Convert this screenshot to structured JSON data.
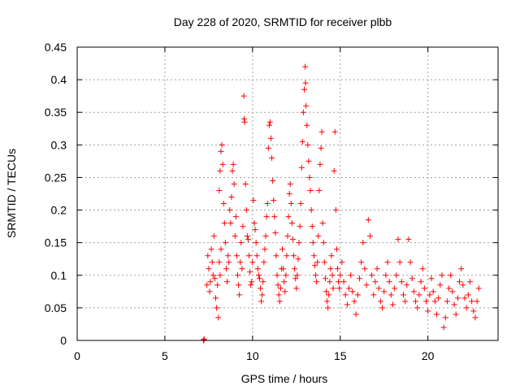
{
  "chart_data": {
    "type": "scatter",
    "title": "Day 228 of 2020, SRMTID for receiver plbb",
    "xlabel": "GPS time / hours",
    "ylabel": "SRMTID / TECUs",
    "xlim": [
      0,
      24
    ],
    "ylim": [
      0,
      0.45
    ],
    "xticks": [
      0,
      5,
      10,
      15,
      20
    ],
    "xtick_labels": [
      "0",
      "5",
      "10",
      "15",
      "20"
    ],
    "yticks": [
      0,
      0.05,
      0.1,
      0.15,
      0.2,
      0.25,
      0.3,
      0.35,
      0.4,
      0.45
    ],
    "ytick_labels": [
      "0",
      "0.05",
      "0.1",
      "0.15",
      "0.2",
      "0.25",
      "0.3",
      "0.35",
      "0.4",
      "0.45"
    ],
    "grid": true,
    "marker": "+",
    "color": "#ff0000",
    "series": [
      {
        "name": "SRMTID",
        "points": [
          [
            7.2,
            0.0
          ],
          [
            7.22,
            0.001
          ],
          [
            7.24,
            0.002
          ],
          [
            7.4,
            0.085
          ],
          [
            7.45,
            0.13
          ],
          [
            7.5,
            0.11
          ],
          [
            7.55,
            0.075
          ],
          [
            7.6,
            0.09
          ],
          [
            7.65,
            0.14
          ],
          [
            7.7,
            0.12
          ],
          [
            7.75,
            0.1
          ],
          [
            7.8,
            0.16
          ],
          [
            7.85,
            0.095
          ],
          [
            7.9,
            0.065
          ],
          [
            7.95,
            0.05
          ],
          [
            8.0,
            0.085
          ],
          [
            8.05,
            0.035
          ],
          [
            8.1,
            0.12
          ],
          [
            8.15,
            0.1
          ],
          [
            8.2,
            0.14
          ],
          [
            8.1,
            0.23
          ],
          [
            8.15,
            0.26
          ],
          [
            8.2,
            0.29
          ],
          [
            8.25,
            0.3
          ],
          [
            8.3,
            0.27
          ],
          [
            8.35,
            0.21
          ],
          [
            8.4,
            0.18
          ],
          [
            8.45,
            0.15
          ],
          [
            8.5,
            0.11
          ],
          [
            8.55,
            0.09
          ],
          [
            8.6,
            0.13
          ],
          [
            8.65,
            0.12
          ],
          [
            8.7,
            0.2
          ],
          [
            8.75,
            0.18
          ],
          [
            8.8,
            0.22
          ],
          [
            8.85,
            0.26
          ],
          [
            8.9,
            0.27
          ],
          [
            8.95,
            0.24
          ],
          [
            9.0,
            0.16
          ],
          [
            9.05,
            0.19
          ],
          [
            9.1,
            0.13
          ],
          [
            9.15,
            0.1
          ],
          [
            9.2,
            0.085
          ],
          [
            9.25,
            0.07
          ],
          [
            9.3,
            0.12
          ],
          [
            9.35,
            0.15
          ],
          [
            9.4,
            0.11
          ],
          [
            9.45,
            0.175
          ],
          [
            9.5,
            0.375
          ],
          [
            9.52,
            0.34
          ],
          [
            9.55,
            0.335
          ],
          [
            9.6,
            0.24
          ],
          [
            9.65,
            0.2
          ],
          [
            9.7,
            0.16
          ],
          [
            9.75,
            0.155
          ],
          [
            9.8,
            0.13
          ],
          [
            9.85,
            0.105
          ],
          [
            9.9,
            0.085
          ],
          [
            9.95,
            0.09
          ],
          [
            10.0,
            0.12
          ],
          [
            10.05,
            0.215
          ],
          [
            10.1,
            0.18
          ],
          [
            10.15,
            0.17
          ],
          [
            10.2,
            0.15
          ],
          [
            10.25,
            0.13
          ],
          [
            10.3,
            0.11
          ],
          [
            10.35,
            0.1
          ],
          [
            10.4,
            0.095
          ],
          [
            10.45,
            0.08
          ],
          [
            10.5,
            0.06
          ],
          [
            10.55,
            0.07
          ],
          [
            10.6,
            0.09
          ],
          [
            10.65,
            0.12
          ],
          [
            10.7,
            0.14
          ],
          [
            10.75,
            0.16
          ],
          [
            10.8,
            0.19
          ],
          [
            10.85,
            0.21
          ],
          [
            10.9,
            0.295
          ],
          [
            10.95,
            0.33
          ],
          [
            11.0,
            0.335
          ],
          [
            11.05,
            0.31
          ],
          [
            11.1,
            0.28
          ],
          [
            11.15,
            0.245
          ],
          [
            11.2,
            0.215
          ],
          [
            11.25,
            0.19
          ],
          [
            11.3,
            0.165
          ],
          [
            11.35,
            0.13
          ],
          [
            11.4,
            0.1
          ],
          [
            11.45,
            0.085
          ],
          [
            11.5,
            0.07
          ],
          [
            11.55,
            0.06
          ],
          [
            11.6,
            0.08
          ],
          [
            11.65,
            0.11
          ],
          [
            11.7,
            0.14
          ],
          [
            11.75,
            0.11
          ],
          [
            11.8,
            0.09
          ],
          [
            11.85,
            0.075
          ],
          [
            11.9,
            0.1
          ],
          [
            11.95,
            0.13
          ],
          [
            12.0,
            0.16
          ],
          [
            12.05,
            0.19
          ],
          [
            12.1,
            0.225
          ],
          [
            12.15,
            0.24
          ],
          [
            12.2,
            0.21
          ],
          [
            12.25,
            0.18
          ],
          [
            12.3,
            0.155
          ],
          [
            12.35,
            0.13
          ],
          [
            12.4,
            0.11
          ],
          [
            12.45,
            0.095
          ],
          [
            12.5,
            0.08
          ],
          [
            12.55,
            0.1
          ],
          [
            12.6,
            0.125
          ],
          [
            12.65,
            0.15
          ],
          [
            12.7,
            0.175
          ],
          [
            12.75,
            0.21
          ],
          [
            12.8,
            0.265
          ],
          [
            12.85,
            0.305
          ],
          [
            12.9,
            0.35
          ],
          [
            12.95,
            0.385
          ],
          [
            13.0,
            0.42
          ],
          [
            13.02,
            0.395
          ],
          [
            13.05,
            0.36
          ],
          [
            13.1,
            0.33
          ],
          [
            13.15,
            0.3
          ],
          [
            13.2,
            0.275
          ],
          [
            13.25,
            0.25
          ],
          [
            13.3,
            0.23
          ],
          [
            13.35,
            0.2
          ],
          [
            13.4,
            0.175
          ],
          [
            13.45,
            0.15
          ],
          [
            13.5,
            0.13
          ],
          [
            13.55,
            0.115
          ],
          [
            13.6,
            0.1
          ],
          [
            13.65,
            0.09
          ],
          [
            13.7,
            0.12
          ],
          [
            13.75,
            0.16
          ],
          [
            13.8,
            0.23
          ],
          [
            13.85,
            0.27
          ],
          [
            13.9,
            0.295
          ],
          [
            13.95,
            0.32
          ],
          [
            14.0,
            0.18
          ],
          [
            14.05,
            0.15
          ],
          [
            14.1,
            0.12
          ],
          [
            14.15,
            0.095
          ],
          [
            14.2,
            0.075
          ],
          [
            14.25,
            0.06
          ],
          [
            14.3,
            0.05
          ],
          [
            14.35,
            0.07
          ],
          [
            14.4,
            0.09
          ],
          [
            14.45,
            0.11
          ],
          [
            14.5,
            0.13
          ],
          [
            14.55,
            0.1
          ],
          [
            14.6,
            0.08
          ],
          [
            14.65,
            0.26
          ],
          [
            14.7,
            0.32
          ],
          [
            14.75,
            0.2
          ],
          [
            14.8,
            0.14
          ],
          [
            14.85,
            0.11
          ],
          [
            14.9,
            0.09
          ],
          [
            14.95,
            0.08
          ],
          [
            15.0,
            0.1
          ],
          [
            15.1,
            0.12
          ],
          [
            15.2,
            0.09
          ],
          [
            15.3,
            0.07
          ],
          [
            15.4,
            0.055
          ],
          [
            15.5,
            0.08
          ],
          [
            15.6,
            0.1
          ],
          [
            15.7,
            0.075
          ],
          [
            15.8,
            0.06
          ],
          [
            15.9,
            0.04
          ],
          [
            16.0,
            0.07
          ],
          [
            16.1,
            0.095
          ],
          [
            16.2,
            0.12
          ],
          [
            16.3,
            0.15
          ],
          [
            16.4,
            0.11
          ],
          [
            16.5,
            0.085
          ],
          [
            16.6,
            0.185
          ],
          [
            16.7,
            0.16
          ],
          [
            16.8,
            0.1
          ],
          [
            16.9,
            0.07
          ],
          [
            17.0,
            0.09
          ],
          [
            17.1,
            0.11
          ],
          [
            17.2,
            0.08
          ],
          [
            17.3,
            0.06
          ],
          [
            17.4,
            0.05
          ],
          [
            17.5,
            0.075
          ],
          [
            17.6,
            0.1
          ],
          [
            17.7,
            0.12
          ],
          [
            17.8,
            0.09
          ],
          [
            17.9,
            0.07
          ],
          [
            18.0,
            0.055
          ],
          [
            18.1,
            0.08
          ],
          [
            18.2,
            0.1
          ],
          [
            18.3,
            0.155
          ],
          [
            18.4,
            0.12
          ],
          [
            18.5,
            0.09
          ],
          [
            18.6,
            0.07
          ],
          [
            18.7,
            0.06
          ],
          [
            18.8,
            0.085
          ],
          [
            18.9,
            0.155
          ],
          [
            19.0,
            0.12
          ],
          [
            19.1,
            0.095
          ],
          [
            19.2,
            0.075
          ],
          [
            19.3,
            0.06
          ],
          [
            19.4,
            0.05
          ],
          [
            19.5,
            0.07
          ],
          [
            19.6,
            0.09
          ],
          [
            19.7,
            0.11
          ],
          [
            19.8,
            0.08
          ],
          [
            19.9,
            0.06
          ],
          [
            20.0,
            0.045
          ],
          [
            20.1,
            0.07
          ],
          [
            20.2,
            0.095
          ],
          [
            20.3,
            0.075
          ],
          [
            20.4,
            0.06
          ],
          [
            20.5,
            0.04
          ],
          [
            20.6,
            0.065
          ],
          [
            20.7,
            0.085
          ],
          [
            20.8,
            0.1
          ],
          [
            20.9,
            0.02
          ],
          [
            21.0,
            0.035
          ],
          [
            21.1,
            0.06
          ],
          [
            21.2,
            0.08
          ],
          [
            21.3,
            0.1
          ],
          [
            21.4,
            0.075
          ],
          [
            21.5,
            0.055
          ],
          [
            21.6,
            0.04
          ],
          [
            21.7,
            0.065
          ],
          [
            21.8,
            0.09
          ],
          [
            21.9,
            0.11
          ],
          [
            22.0,
            0.085
          ],
          [
            22.1,
            0.065
          ],
          [
            22.2,
            0.05
          ],
          [
            22.3,
            0.07
          ],
          [
            22.4,
            0.09
          ],
          [
            22.5,
            0.06
          ],
          [
            22.6,
            0.045
          ],
          [
            22.7,
            0.035
          ],
          [
            22.8,
            0.06
          ],
          [
            22.9,
            0.08
          ]
        ]
      }
    ]
  }
}
